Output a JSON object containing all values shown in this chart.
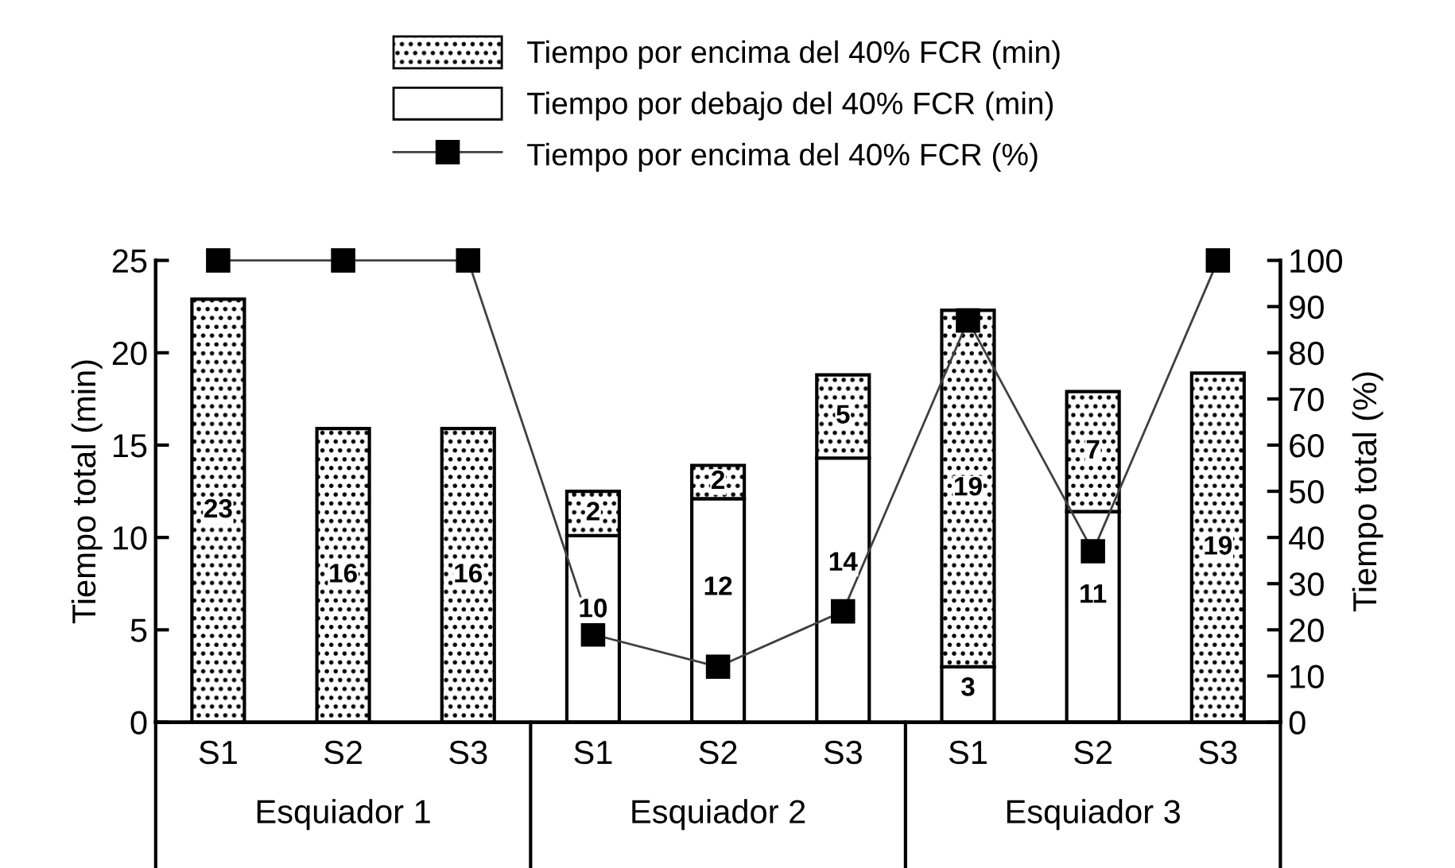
{
  "chart_data": {
    "type": "bar",
    "stacked": true,
    "ylabel": "Tiempo total (min)",
    "y2label": "Tiempo total (%)",
    "categories": [
      "S1",
      "S2",
      "S3",
      "S1",
      "S2",
      "S3",
      "S1",
      "S2",
      "S3"
    ],
    "annotations": [
      "Esquiador 1",
      "Esquiador 2",
      "Esquiador 3"
    ],
    "series": [
      {
        "name": "Tiempo por debajo del 40% FCR (min)",
        "color": "#000000",
        "values": [
          0,
          0,
          0,
          10.1,
          12.1,
          14.3,
          3.0,
          11.4,
          0
        ],
        "value_labels": [
          null,
          null,
          null,
          "10",
          "12",
          "14",
          "3",
          "11",
          null
        ]
      },
      {
        "name": "Tiempo por encima del 40% FCR (min)",
        "color": "#000000",
        "values": [
          22.9,
          15.9,
          15.9,
          2.4,
          1.8,
          4.5,
          19.3,
          6.5,
          18.9
        ],
        "value_labels": [
          "23",
          "16",
          "16",
          "2",
          "2",
          "5",
          "19",
          "7",
          "19"
        ]
      },
      {
        "name": "Tiempo por encima del 40% FCR (%)",
        "type": "line",
        "axis": "y2",
        "color": "#000000",
        "marker": "square",
        "values": [
          100,
          100,
          100,
          19,
          12,
          24,
          87,
          37,
          100
        ]
      }
    ],
    "ylim": [
      0,
      25
    ],
    "yticks": [
      0,
      5,
      10,
      15,
      20,
      25
    ],
    "y2lim": [
      0,
      100
    ],
    "y2ticks": [
      0,
      10,
      20,
      30,
      40,
      50,
      60,
      70,
      80,
      90,
      100
    ],
    "grid": false,
    "legend": "top"
  }
}
